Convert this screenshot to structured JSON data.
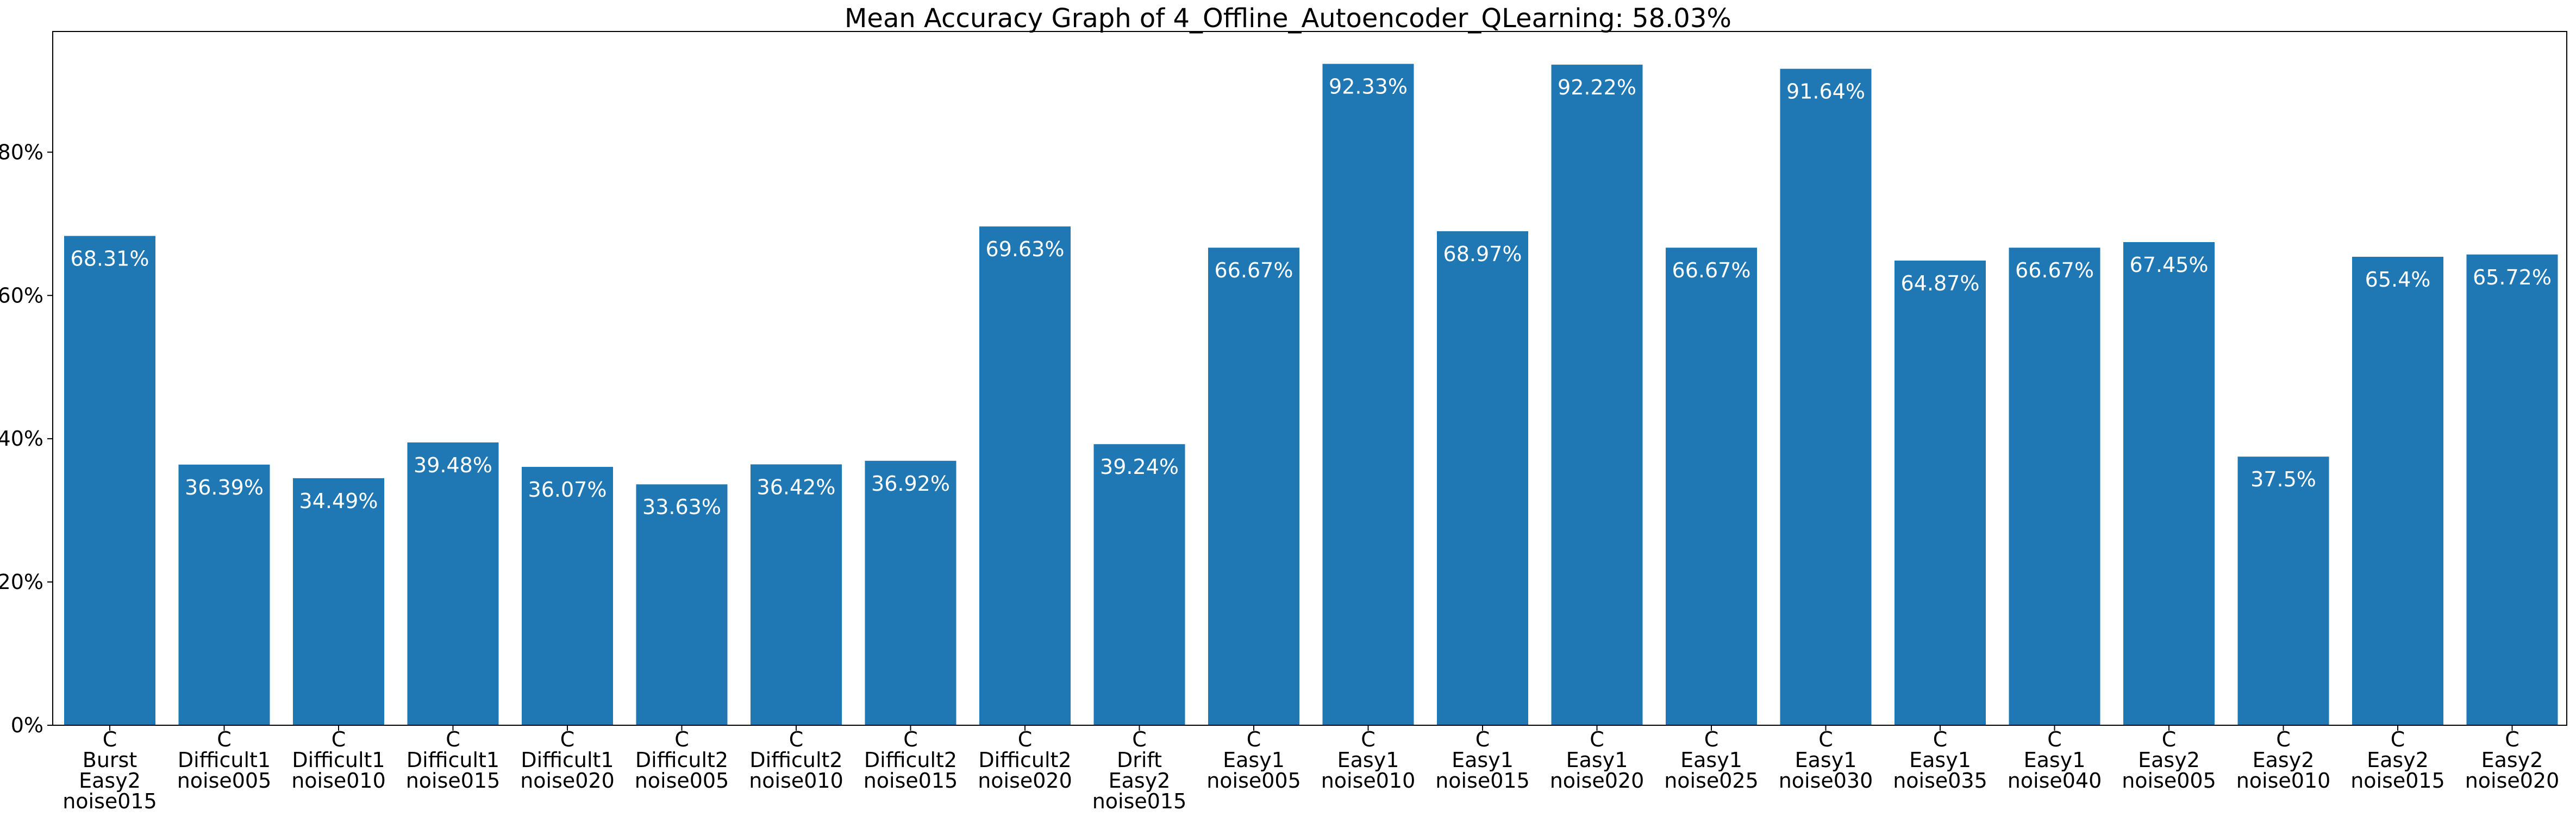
{
  "chart_data": {
    "type": "bar",
    "title": "Mean Accuracy Graph of 4_Offline_Autoencoder_QLearning: 58.03%",
    "xlabel": "",
    "ylabel": "",
    "ylim": [
      0,
      96.85
    ],
    "y_ticks": [
      "0%",
      "20%",
      "40%",
      "60%",
      "80%"
    ],
    "y_tick_values": [
      0,
      20,
      40,
      60,
      80
    ],
    "grid": false,
    "legend": "none",
    "bar_color": "#1f77b4",
    "categories": [
      [
        "C",
        "Burst",
        "Easy2",
        "noise015"
      ],
      [
        "C",
        "Difficult1",
        "noise005"
      ],
      [
        "C",
        "Difficult1",
        "noise010"
      ],
      [
        "C",
        "Difficult1",
        "noise015"
      ],
      [
        "C",
        "Difficult1",
        "noise020"
      ],
      [
        "C",
        "Difficult2",
        "noise005"
      ],
      [
        "C",
        "Difficult2",
        "noise010"
      ],
      [
        "C",
        "Difficult2",
        "noise015"
      ],
      [
        "C",
        "Difficult2",
        "noise020"
      ],
      [
        "C",
        "Drift",
        "Easy2",
        "noise015"
      ],
      [
        "C",
        "Easy1",
        "noise005"
      ],
      [
        "C",
        "Easy1",
        "noise010"
      ],
      [
        "C",
        "Easy1",
        "noise015"
      ],
      [
        "C",
        "Easy1",
        "noise020"
      ],
      [
        "C",
        "Easy1",
        "noise025"
      ],
      [
        "C",
        "Easy1",
        "noise030"
      ],
      [
        "C",
        "Easy1",
        "noise035"
      ],
      [
        "C",
        "Easy1",
        "noise040"
      ],
      [
        "C",
        "Easy2",
        "noise005"
      ],
      [
        "C",
        "Easy2",
        "noise010"
      ],
      [
        "C",
        "Easy2",
        "noise015"
      ],
      [
        "C",
        "Easy2",
        "noise020"
      ]
    ],
    "values": [
      68.31,
      36.39,
      34.49,
      39.48,
      36.07,
      33.63,
      36.42,
      36.92,
      69.63,
      39.24,
      66.67,
      92.33,
      68.97,
      92.22,
      66.67,
      91.64,
      64.87,
      66.67,
      67.45,
      37.5,
      65.4,
      65.72
    ],
    "value_labels": [
      "68.31%",
      "36.39%",
      "34.49%",
      "39.48%",
      "36.07%",
      "33.63%",
      "36.42%",
      "36.92%",
      "69.63%",
      "39.24%",
      "66.67%",
      "92.33%",
      "68.97%",
      "92.22%",
      "66.67%",
      "91.64%",
      "64.87%",
      "66.67%",
      "67.45%",
      "37.5%",
      "65.4%",
      "65.72%"
    ]
  }
}
